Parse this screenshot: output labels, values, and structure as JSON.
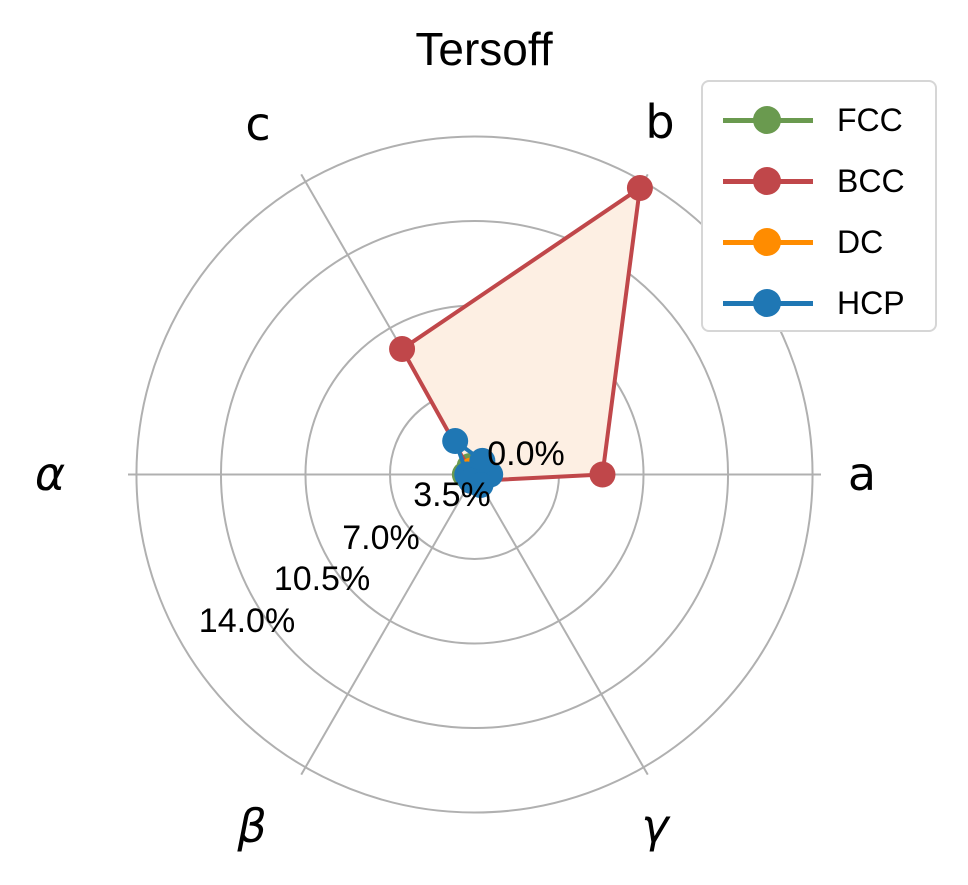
{
  "chart_data": {
    "type": "radar",
    "title": "Tersoff",
    "axes": [
      "a",
      "b",
      "c",
      "α",
      "β",
      "γ"
    ],
    "axis_angles_deg": [
      0,
      60,
      120,
      180,
      240,
      300
    ],
    "radial_ticks": [
      0.0,
      3.5,
      7.0,
      10.5,
      14.0
    ],
    "radial_tick_labels": [
      "0.0%",
      "3.5%",
      "7.0%",
      "10.5%",
      "14.0%"
    ],
    "rlim": [
      0,
      14.35
    ],
    "grid": true,
    "legend_position": "upper right",
    "series": [
      {
        "name": "FCC",
        "color": "#6a9a4f",
        "values": [
          0.3,
          0.3,
          0.4,
          0.4,
          0.3,
          0.3
        ]
      },
      {
        "name": "BCC",
        "color": "#c0474a",
        "fill": "#fdefe3",
        "values": [
          5.3,
          13.7,
          6.0,
          0.1,
          0.3,
          0.3
        ]
      },
      {
        "name": "DC",
        "color": "#ff8c00",
        "values": [
          0.2,
          0.2,
          0.2,
          0.2,
          0.2,
          0.2
        ]
      },
      {
        "name": "HCP",
        "color": "#1f77b4",
        "values": [
          0.65,
          0.65,
          1.6,
          0.3,
          0.3,
          0.5
        ]
      }
    ]
  },
  "title": "Tersoff",
  "legend": {
    "items": [
      {
        "label": "FCC",
        "color": "#6a9a4f"
      },
      {
        "label": "BCC",
        "color": "#c0474a"
      },
      {
        "label": "DC",
        "color": "#ff8c00"
      },
      {
        "label": "HCP",
        "color": "#1f77b4"
      }
    ]
  },
  "axis_labels": {
    "a": "a",
    "b": "b",
    "c": "c",
    "alpha": "α",
    "beta": "β",
    "gamma": "γ"
  },
  "tick_labels": [
    "0.0%",
    "3.5%",
    "7.0%",
    "10.5%",
    "14.0%"
  ]
}
